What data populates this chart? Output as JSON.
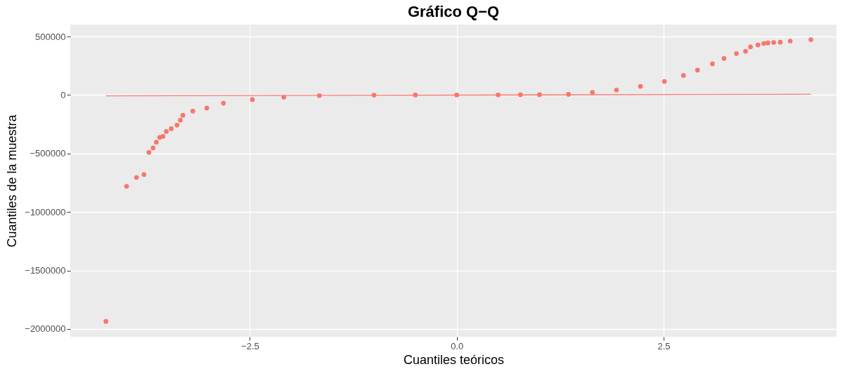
{
  "chart_data": {
    "type": "scatter",
    "title": "Gráfico Q−Q",
    "xlabel": "Cuantiles teóricos",
    "ylabel": "Cuantiles de la muestra",
    "xlim": [
      -4.67,
      4.59
    ],
    "ylim": [
      -2066000,
      602000
    ],
    "xticks": [
      {
        "value": -2.5,
        "label": "−2.5"
      },
      {
        "value": 0,
        "label": "0.0"
      },
      {
        "value": 2.5,
        "label": "2.5"
      }
    ],
    "yticks": [
      {
        "value": -2000000,
        "label": "−2000000"
      },
      {
        "value": -1500000,
        "label": "−1500000"
      },
      {
        "value": -1000000,
        "label": "−1000000"
      },
      {
        "value": -500000,
        "label": "−500000"
      },
      0,
      500000
    ],
    "grid": true,
    "series": [
      {
        "marker": "circle",
        "color": "#f8766d",
        "x": [
          -4.24,
          -3.99,
          -3.87,
          -3.78,
          -3.72,
          -3.67,
          -3.63,
          -3.59,
          -3.55,
          -3.51,
          -3.45,
          -3.38,
          -3.34,
          -3.31,
          -3.19,
          -3.02,
          -2.82,
          -2.47,
          -2.09,
          -1.66,
          -1.0,
          -0.5,
          0,
          0.5,
          0.77,
          1.0,
          1.35,
          1.64,
          1.93,
          2.22,
          2.51,
          2.74,
          2.91,
          3.09,
          3.23,
          3.38,
          3.49,
          3.55,
          3.64,
          3.71,
          3.76,
          3.83,
          3.91,
          4.03,
          4.28
        ],
        "values": [
          -1935000,
          -780000,
          -705000,
          -680000,
          -490000,
          -453000,
          -403000,
          -362000,
          -354000,
          -312000,
          -288000,
          -257000,
          -215000,
          -174000,
          -138000,
          -112000,
          -70000,
          -39000,
          -19000,
          -5000,
          -1000,
          0,
          0,
          1000,
          2000,
          3000,
          6000,
          23000,
          43000,
          74000,
          116000,
          167000,
          213000,
          267000,
          312000,
          354000,
          374000,
          411000,
          428000,
          440000,
          445000,
          449000,
          451000,
          461000,
          473000
        ]
      },
      {
        "type": "line",
        "color": "#f8766d",
        "x": [
          -4.24,
          4.28
        ],
        "values": [
          -7000,
          6000
        ]
      }
    ]
  }
}
